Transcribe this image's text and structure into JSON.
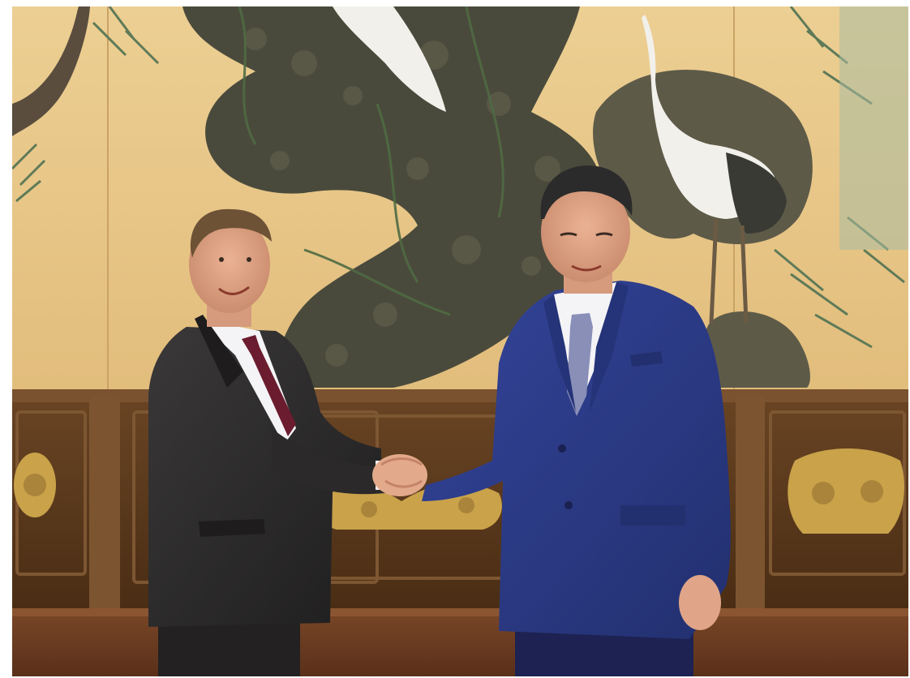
{
  "photo": {
    "subject": "",
    "palette": {
      "wall": "#e8c98a",
      "wall_shadow": "#d9b473",
      "mural_trunk": "#4a4a3c",
      "mural_leaves": "#5e7a58",
      "crane_white": "#f2f0ea",
      "wood_panel": "#5a3a1c",
      "wood_dark": "#3b2410",
      "gold_ornament": "#c9a24a",
      "stage_floor": "#6b3d20",
      "suit_left": "#2e2c2c",
      "tie_left": "#6b1c2e",
      "suit_right": "#2b3a8a",
      "tie_right": "#8a8fb8",
      "shirt": "#f4f4f6",
      "skin": "#e2a98a",
      "hair_left": "#6e5236",
      "hair_right": "#2b2b2b"
    }
  }
}
